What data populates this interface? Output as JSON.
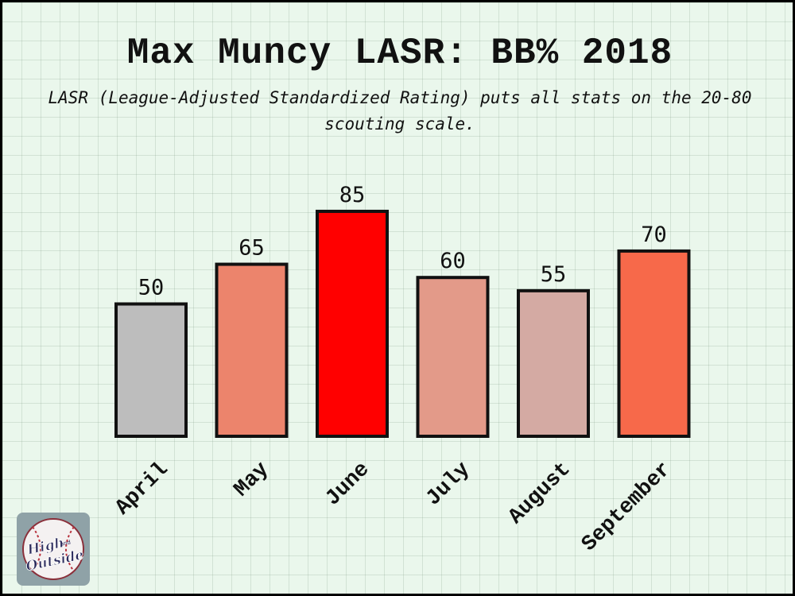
{
  "title": "Max Muncy LASR: BB% 2018",
  "subtitle": "LASR (League-Adjusted Standardized Rating) puts all stats on the 20-80 scouting scale.",
  "logo": {
    "line1": "High",
    "line2": "and",
    "line3": "Outside"
  },
  "chart_data": {
    "type": "bar",
    "title": "Max Muncy LASR: BB% 2018",
    "subtitle": "LASR (League-Adjusted Standardized Rating) puts all stats on the 20-80 scouting scale.",
    "categories": [
      "April",
      "May",
      "June",
      "July",
      "August",
      "September"
    ],
    "values": [
      50,
      65,
      85,
      60,
      55,
      70
    ],
    "colors": [
      "#bdbdbd",
      "#ec846c",
      "#ff0000",
      "#e39a89",
      "#d4aaa3",
      "#f7694a"
    ],
    "data_labels": [
      "50",
      "65",
      "85",
      "60",
      "55",
      "70"
    ],
    "ylim": [
      0,
      100
    ],
    "grid": false,
    "legend": "none"
  }
}
